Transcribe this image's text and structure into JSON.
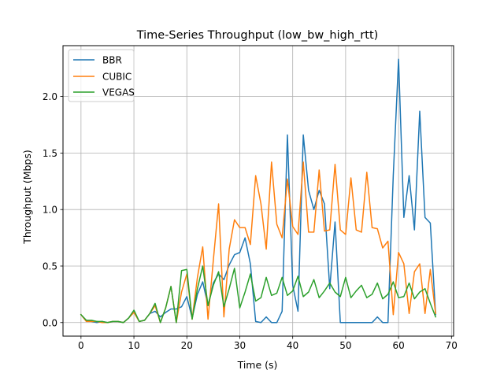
{
  "chart_data": {
    "type": "line",
    "title": "Time-Series Throughput (low_bw_high_rtt)",
    "xlabel": "Time (s)",
    "ylabel": "Throughput (Mbps)",
    "xlim": [
      -3.4,
      70.4
    ],
    "ylim": [
      -0.12,
      2.45
    ],
    "x_ticks": [
      0,
      10,
      20,
      30,
      40,
      50,
      60,
      70
    ],
    "y_ticks": [
      0.0,
      0.5,
      1.0,
      1.5,
      2.0
    ],
    "x_tick_labels": [
      "0",
      "10",
      "20",
      "30",
      "40",
      "50",
      "60",
      "70"
    ],
    "y_tick_labels": [
      "0.0",
      "0.5",
      "1.0",
      "1.5",
      "2.0"
    ],
    "grid": true,
    "legend_position": "top-left",
    "x": [
      0,
      1,
      2,
      3,
      4,
      5,
      6,
      7,
      8,
      9,
      10,
      11,
      12,
      13,
      14,
      15,
      16,
      17,
      18,
      19,
      20,
      21,
      22,
      23,
      24,
      25,
      26,
      27,
      28,
      29,
      30,
      31,
      32,
      33,
      34,
      35,
      36,
      37,
      38,
      39,
      40,
      41,
      42,
      43,
      44,
      45,
      46,
      47,
      48,
      49,
      50,
      51,
      52,
      53,
      54,
      55,
      56,
      57,
      58,
      59,
      60,
      61,
      62,
      63,
      64,
      65,
      66,
      67
    ],
    "series": [
      {
        "name": "BBR",
        "color": "#1f77b4",
        "values": [
          0.07,
          0.02,
          0.01,
          0.0,
          0.01,
          0.0,
          0.01,
          0.01,
          0.0,
          0.04,
          0.1,
          0.01,
          0.02,
          0.08,
          0.1,
          0.05,
          0.09,
          0.12,
          0.12,
          0.14,
          0.23,
          0.04,
          0.25,
          0.36,
          0.15,
          0.35,
          0.43,
          0.38,
          0.51,
          0.6,
          0.62,
          0.75,
          0.52,
          0.01,
          0.0,
          0.05,
          0.0,
          0.0,
          0.1,
          1.66,
          0.33,
          0.1,
          1.66,
          1.17,
          1.0,
          1.17,
          1.05,
          0.3,
          0.89,
          0.0,
          0.0,
          0.0,
          0.0,
          0.0,
          0.0,
          0.0,
          0.05,
          0.0,
          0.0,
          1.3,
          2.33,
          0.93,
          1.3,
          0.82,
          1.87,
          0.93,
          0.88,
          0.07
        ]
      },
      {
        "name": "CUBIC",
        "color": "#ff7f0e",
        "values": [
          0.07,
          0.01,
          0.01,
          0.01,
          0.0,
          0.0,
          0.01,
          0.01,
          0.0,
          0.04,
          0.09,
          0.01,
          0.02,
          0.08,
          0.15,
          0.0,
          0.13,
          0.32,
          0.0,
          0.27,
          0.43,
          0.03,
          0.4,
          0.67,
          0.03,
          0.55,
          1.05,
          0.05,
          0.65,
          0.91,
          0.84,
          0.84,
          0.69,
          1.3,
          1.05,
          0.65,
          1.42,
          0.87,
          0.75,
          1.27,
          0.85,
          0.78,
          1.42,
          0.8,
          0.8,
          1.35,
          0.81,
          0.82,
          1.4,
          0.82,
          0.78,
          1.28,
          0.82,
          0.8,
          1.33,
          0.84,
          0.83,
          0.66,
          0.72,
          0.07,
          0.62,
          0.52,
          0.08,
          0.45,
          0.52,
          0.08,
          0.47,
          0.08
        ]
      },
      {
        "name": "VEGAS",
        "color": "#2ca02c",
        "values": [
          0.07,
          0.02,
          0.02,
          0.01,
          0.01,
          0.0,
          0.01,
          0.01,
          0.0,
          0.04,
          0.11,
          0.01,
          0.02,
          0.08,
          0.17,
          0.0,
          0.13,
          0.32,
          0.0,
          0.46,
          0.47,
          0.03,
          0.3,
          0.5,
          0.15,
          0.33,
          0.45,
          0.14,
          0.3,
          0.48,
          0.13,
          0.27,
          0.43,
          0.19,
          0.22,
          0.4,
          0.24,
          0.26,
          0.4,
          0.24,
          0.28,
          0.41,
          0.23,
          0.27,
          0.38,
          0.22,
          0.28,
          0.35,
          0.27,
          0.23,
          0.4,
          0.22,
          0.28,
          0.33,
          0.22,
          0.25,
          0.35,
          0.21,
          0.25,
          0.36,
          0.22,
          0.23,
          0.35,
          0.21,
          0.27,
          0.3,
          0.17,
          0.05
        ]
      }
    ]
  }
}
